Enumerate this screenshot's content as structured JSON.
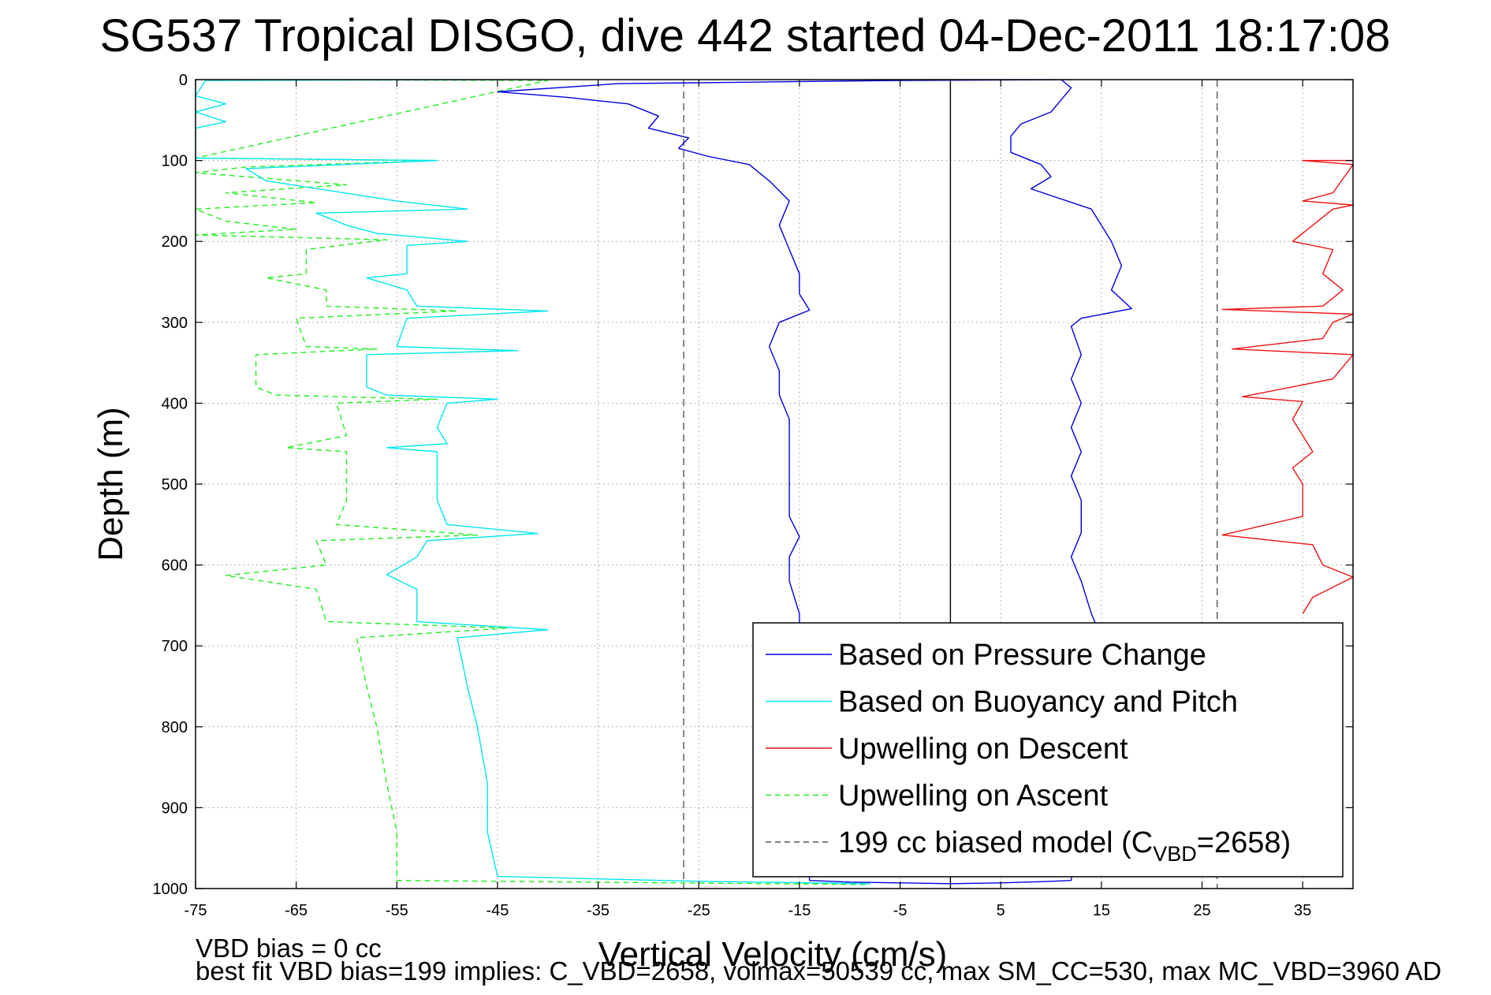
{
  "chart_data": {
    "type": "line",
    "title": "SG537 Tropical DISGO, dive 442 started 04-Dec-2011 18:17:08",
    "xlabel": "Vertical Velocity (cm/s)",
    "ylabel": "Depth (m)",
    "xlim": [
      -75,
      40
    ],
    "ylim": [
      0,
      1000
    ],
    "y_reversed": true,
    "grid": true,
    "xticks": [
      -75,
      -65,
      -55,
      -45,
      -35,
      -25,
      -15,
      -5,
      5,
      15,
      25,
      35
    ],
    "yticks": [
      0,
      100,
      200,
      300,
      400,
      500,
      600,
      700,
      800,
      900,
      1000
    ],
    "xtick_labels": [
      "-75",
      "-65",
      "-55",
      "-45",
      "-35",
      "-25",
      "-15",
      "-5",
      "5",
      "15",
      "25",
      "35"
    ],
    "ytick_labels": [
      "0",
      "100",
      "200",
      "300",
      "400",
      "500",
      "600",
      "700",
      "800",
      "900",
      "1000"
    ],
    "legend_position": "lower-right",
    "reference_lines": [
      {
        "x": 0,
        "style": "solid",
        "color": "#000000"
      },
      {
        "x": -26.5,
        "style": "dashed",
        "color": "#555555"
      },
      {
        "x": 26.5,
        "style": "dashed",
        "color": "#555555"
      }
    ],
    "series": [
      {
        "name": "Based on Pressure Change",
        "color": "#0000dd",
        "style": "solid",
        "points": [
          [
            12,
            0
          ],
          [
            -5,
            1
          ],
          [
            -33,
            5
          ],
          [
            -45,
            15
          ],
          [
            -38,
            22
          ],
          [
            -32,
            30
          ],
          [
            -29,
            45
          ],
          [
            -30,
            60
          ],
          [
            -26,
            72
          ],
          [
            -27,
            85
          ],
          [
            -24,
            95
          ],
          [
            -20,
            105
          ],
          [
            -18,
            125
          ],
          [
            -16,
            150
          ],
          [
            -17,
            180
          ],
          [
            -16,
            210
          ],
          [
            -15,
            240
          ],
          [
            -15,
            265
          ],
          [
            -14,
            285
          ],
          [
            -17,
            300
          ],
          [
            -18,
            330
          ],
          [
            -17,
            360
          ],
          [
            -17,
            390
          ],
          [
            -16,
            420
          ],
          [
            -16,
            460
          ],
          [
            -16,
            500
          ],
          [
            -16,
            540
          ],
          [
            -15,
            565
          ],
          [
            -16,
            590
          ],
          [
            -16,
            620
          ],
          [
            -15,
            660
          ],
          [
            -15,
            690
          ],
          [
            -14,
            990
          ],
          [
            -10,
            992
          ],
          [
            -5,
            993
          ],
          [
            0,
            994
          ],
          [
            0,
            994
          ],
          [
            5,
            993
          ],
          [
            10,
            991
          ],
          [
            12,
            990
          ],
          [
            15,
            690
          ],
          [
            14,
            660
          ],
          [
            13,
            620
          ],
          [
            12,
            590
          ],
          [
            13,
            560
          ],
          [
            13,
            520
          ],
          [
            12,
            490
          ],
          [
            13,
            460
          ],
          [
            12,
            430
          ],
          [
            13,
            400
          ],
          [
            12,
            370
          ],
          [
            13,
            340
          ],
          [
            12,
            305
          ],
          [
            13,
            295
          ],
          [
            18,
            283
          ],
          [
            16,
            260
          ],
          [
            17,
            230
          ],
          [
            16,
            200
          ],
          [
            15,
            180
          ],
          [
            14,
            160
          ],
          [
            8,
            135
          ],
          [
            10,
            120
          ],
          [
            9,
            105
          ],
          [
            6,
            90
          ],
          [
            6,
            70
          ],
          [
            7,
            55
          ],
          [
            10,
            40
          ],
          [
            11,
            25
          ],
          [
            12,
            10
          ],
          [
            11,
            0
          ]
        ]
      },
      {
        "name": "Based on Buoyancy and Pitch",
        "color": "#00e5ee",
        "style": "solid",
        "points": [
          [
            -45,
            0
          ],
          [
            -74,
            1
          ],
          [
            -75,
            20
          ],
          [
            -72,
            30
          ],
          [
            -75,
            40
          ],
          [
            -72,
            52
          ],
          [
            -75,
            60
          ],
          [
            -75,
            97
          ],
          [
            -51,
            100
          ],
          [
            -70,
            110
          ],
          [
            -68,
            125
          ],
          [
            -55,
            150
          ],
          [
            -48,
            160
          ],
          [
            -63,
            165
          ],
          [
            -60,
            180
          ],
          [
            -57,
            190
          ],
          [
            -48,
            200
          ],
          [
            -54,
            205
          ],
          [
            -54,
            240
          ],
          [
            -58,
            245
          ],
          [
            -54,
            260
          ],
          [
            -53,
            280
          ],
          [
            -40,
            286
          ],
          [
            -54,
            295
          ],
          [
            -55,
            330
          ],
          [
            -43,
            335
          ],
          [
            -58,
            340
          ],
          [
            -58,
            380
          ],
          [
            -56,
            390
          ],
          [
            -45,
            395
          ],
          [
            -50,
            400
          ],
          [
            -51,
            430
          ],
          [
            -50,
            450
          ],
          [
            -56,
            455
          ],
          [
            -51,
            460
          ],
          [
            -51,
            520
          ],
          [
            -50,
            550
          ],
          [
            -41,
            561
          ],
          [
            -52,
            570
          ],
          [
            -53,
            590
          ],
          [
            -56,
            612
          ],
          [
            -53,
            630
          ],
          [
            -53,
            670
          ],
          [
            -40,
            680
          ],
          [
            -49,
            690
          ],
          [
            -48,
            750
          ],
          [
            -47,
            800
          ],
          [
            -46,
            870
          ],
          [
            -46,
            930
          ],
          [
            -45,
            985
          ],
          [
            -25,
            991
          ],
          [
            -8,
            994
          ]
        ]
      },
      {
        "name": "Upwelling on Descent",
        "color": "#ee1111",
        "style": "solid",
        "points": [
          [
            40,
            100
          ],
          [
            35,
            100
          ],
          [
            40,
            105
          ],
          [
            38,
            140
          ],
          [
            35,
            150
          ],
          [
            40,
            155
          ],
          [
            38,
            160
          ],
          [
            36,
            180
          ],
          [
            34,
            200
          ],
          [
            38,
            210
          ],
          [
            37,
            240
          ],
          [
            39,
            260
          ],
          [
            37,
            280
          ],
          [
            27,
            284
          ],
          [
            40,
            290
          ],
          [
            38,
            300
          ],
          [
            37,
            320
          ],
          [
            28,
            333
          ],
          [
            40,
            340
          ],
          [
            38,
            370
          ],
          [
            29,
            392
          ],
          [
            35,
            398
          ],
          [
            34,
            420
          ],
          [
            35,
            440
          ],
          [
            36,
            460
          ],
          [
            34,
            480
          ],
          [
            35,
            500
          ],
          [
            35,
            540
          ],
          [
            27,
            563
          ],
          [
            36,
            575
          ],
          [
            37,
            600
          ],
          [
            40,
            615
          ],
          [
            36,
            640
          ],
          [
            35,
            660
          ]
        ]
      },
      {
        "name": "Upwelling on Ascent",
        "color": "#22ee22",
        "style": "dashed",
        "points": [
          [
            -74,
            0
          ],
          [
            -40,
            1
          ],
          [
            -75,
            97
          ],
          [
            -51,
            100
          ],
          [
            -70,
            108
          ],
          [
            -75,
            115
          ],
          [
            -60,
            130
          ],
          [
            -72,
            140
          ],
          [
            -63,
            152
          ],
          [
            -75,
            160
          ],
          [
            -72,
            175
          ],
          [
            -65,
            185
          ],
          [
            -75,
            192
          ],
          [
            -56,
            198
          ],
          [
            -64,
            210
          ],
          [
            -64,
            240
          ],
          [
            -68,
            245
          ],
          [
            -62,
            260
          ],
          [
            -62,
            280
          ],
          [
            -49,
            286
          ],
          [
            -65,
            295
          ],
          [
            -64,
            330
          ],
          [
            -57,
            333
          ],
          [
            -69,
            340
          ],
          [
            -69,
            380
          ],
          [
            -67,
            390
          ],
          [
            -51,
            395
          ],
          [
            -61,
            400
          ],
          [
            -60,
            440
          ],
          [
            -66,
            455
          ],
          [
            -60,
            460
          ],
          [
            -60,
            520
          ],
          [
            -61,
            550
          ],
          [
            -47,
            563
          ],
          [
            -63,
            570
          ],
          [
            -62,
            600
          ],
          [
            -72,
            613
          ],
          [
            -63,
            630
          ],
          [
            -62,
            670
          ],
          [
            -44,
            678
          ],
          [
            -59,
            690
          ],
          [
            -58,
            750
          ],
          [
            -57,
            800
          ],
          [
            -56,
            870
          ],
          [
            -55,
            930
          ],
          [
            -55,
            990
          ],
          [
            -8,
            995
          ]
        ]
      },
      {
        "name": "199 cc biased model (C",
        "name_subscript": "VBD",
        "name_suffix": "=2658)",
        "color": "#555555",
        "style": "dashed",
        "points": []
      }
    ],
    "footer": {
      "line1": "VBD bias = 0 cc",
      "line2": "best fit VBD bias=199 implies: C_VBD=2658, volmax=50539 cc, max SM_CC=530, max MC_VBD=3960 AD"
    }
  }
}
